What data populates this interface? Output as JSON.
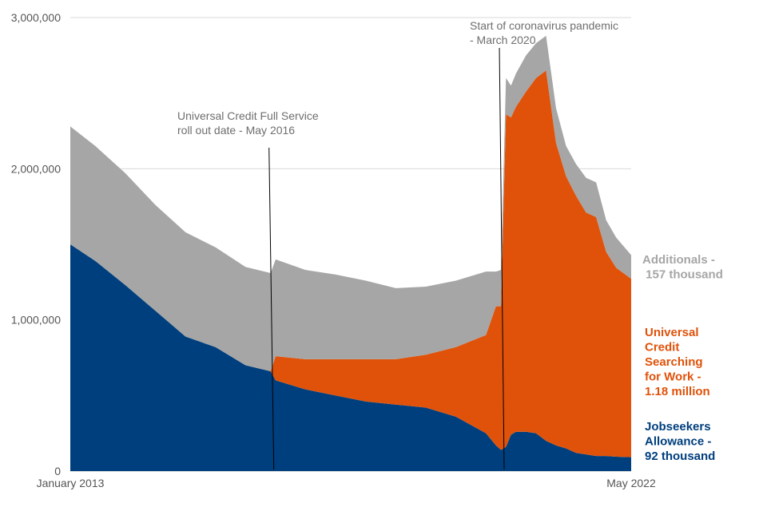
{
  "chart_data": {
    "type": "area",
    "stacked": true,
    "x_start": "January 2013",
    "x_end": "May 2022",
    "ylim": [
      0,
      3000000
    ],
    "y_ticks": [
      {
        "value": 0,
        "label": "0"
      },
      {
        "value": 1000000,
        "label": "1,000,000"
      },
      {
        "value": 2000000,
        "label": "2,000,000"
      },
      {
        "value": 3000000,
        "label": "3,000,000"
      }
    ],
    "x_tick_labels": [
      "January 2013",
      "May 2022"
    ],
    "grid": true,
    "colors": {
      "jsa": "#003f7d",
      "uc": "#e0520a",
      "additionals": "#a6a6a6"
    },
    "months": [
      "2013-01",
      "2013-06",
      "2013-12",
      "2014-06",
      "2014-12",
      "2015-06",
      "2015-12",
      "2016-05",
      "2016-06",
      "2016-12",
      "2017-06",
      "2017-12",
      "2018-06",
      "2018-12",
      "2019-06",
      "2019-12",
      "2020-02",
      "2020-03",
      "2020-04",
      "2020-05",
      "2020-06",
      "2020-08",
      "2020-10",
      "2020-12",
      "2021-02",
      "2021-04",
      "2021-06",
      "2021-08",
      "2021-10",
      "2021-12",
      "2022-02",
      "2022-05"
    ],
    "series": [
      {
        "key": "jsa",
        "name": "Jobseekers Allowance",
        "values": [
          1500000,
          1390000,
          1230000,
          1060000,
          890000,
          820000,
          700000,
          660000,
          600000,
          540000,
          500000,
          460000,
          440000,
          420000,
          360000,
          250000,
          170000,
          140000,
          160000,
          240000,
          260000,
          260000,
          250000,
          200000,
          170000,
          150000,
          120000,
          110000,
          100000,
          100000,
          95000,
          92000
        ]
      },
      {
        "key": "uc",
        "name": "Universal Credit Searching for Work",
        "values": [
          0,
          0,
          0,
          0,
          0,
          0,
          0,
          0,
          160000,
          200000,
          240000,
          280000,
          300000,
          350000,
          460000,
          650000,
          920000,
          950000,
          2200000,
          2100000,
          2150000,
          2250000,
          2350000,
          2450000,
          2000000,
          1800000,
          1700000,
          1600000,
          1580000,
          1350000,
          1250000,
          1180000
        ]
      },
      {
        "key": "additionals",
        "name": "Additionals",
        "values": [
          780000,
          760000,
          740000,
          700000,
          690000,
          660000,
          650000,
          650000,
          640000,
          590000,
          560000,
          520000,
          470000,
          450000,
          440000,
          420000,
          230000,
          240000,
          240000,
          210000,
          220000,
          240000,
          230000,
          230000,
          230000,
          200000,
          210000,
          230000,
          230000,
          210000,
          200000,
          157000
        ]
      }
    ],
    "labels": {
      "additionals": [
        "Additionals -",
        " 157 thousand"
      ],
      "uc": [
        "Universal",
        "Credit",
        "Searching",
        "for Work -",
        "1.18 million"
      ],
      "jsa": [
        "Jobseekers",
        "Allowance -",
        "92 thousand"
      ]
    },
    "annotations": [
      {
        "month": "2016-05",
        "lines": [
          "Universal Credit Full Service",
          "roll out date - May 2016"
        ]
      },
      {
        "month": "2020-03",
        "lines": [
          "Start of coronavirus pandemic",
          "- March 2020"
        ]
      }
    ]
  }
}
